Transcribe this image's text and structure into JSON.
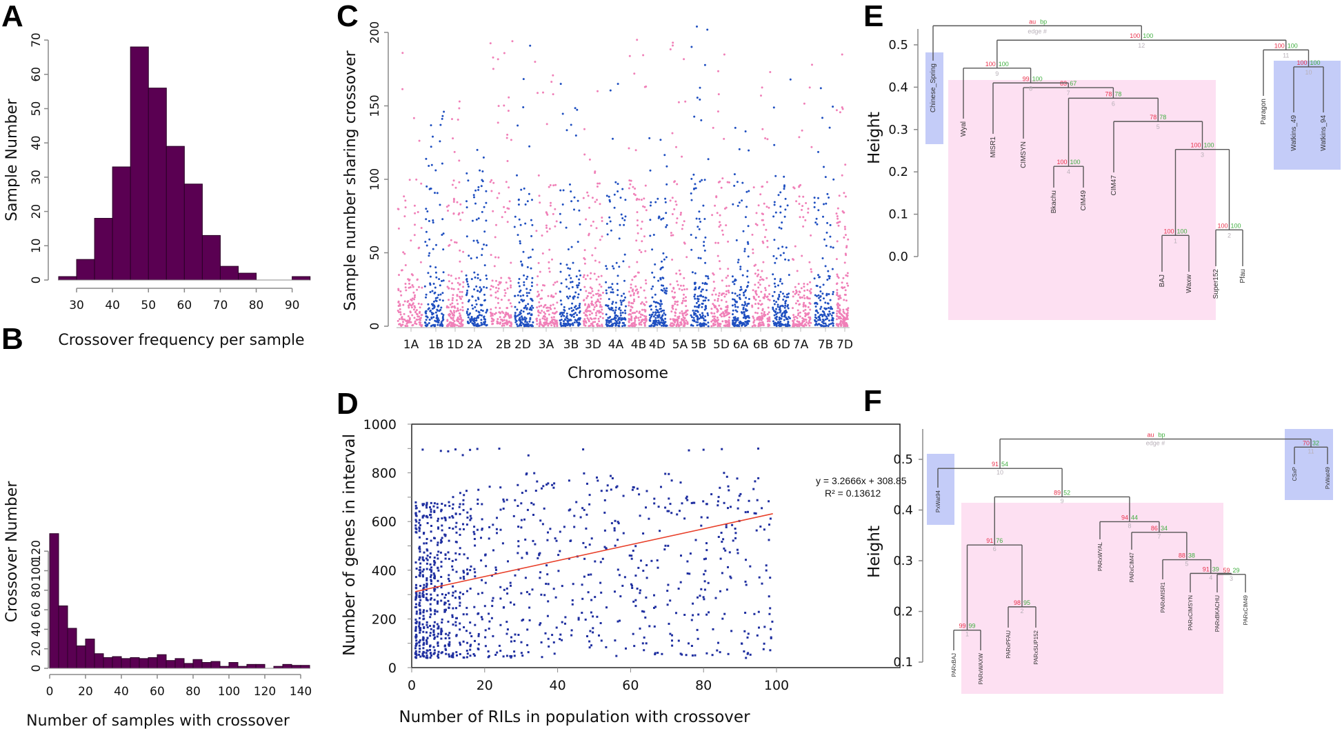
{
  "figure": {
    "panels": [
      "A",
      "B",
      "C",
      "D",
      "E",
      "F"
    ]
  },
  "chart_data": [
    {
      "id": "A",
      "type": "bar",
      "subtype": "histogram",
      "title": "",
      "xlabel": "Crossover frequency per sample",
      "ylabel": "Sample Number",
      "bin_width": 5,
      "bin_starts": [
        25,
        30,
        35,
        40,
        45,
        50,
        55,
        60,
        65,
        70,
        75,
        80,
        85,
        90
      ],
      "values": [
        1,
        6,
        18,
        33,
        68,
        56,
        39,
        28,
        13,
        4,
        2,
        0,
        0,
        1
      ],
      "xticks": [
        30,
        40,
        50,
        60,
        70,
        80,
        90
      ],
      "yticks": [
        0,
        10,
        20,
        30,
        40,
        50,
        60,
        70
      ],
      "xlim": [
        25,
        95
      ],
      "ylim": [
        0,
        70
      ],
      "bar_color": "#5a0052"
    },
    {
      "id": "B",
      "type": "bar",
      "subtype": "histogram",
      "title": "",
      "xlabel": "Number of samples with crossover",
      "ylabel": "Crossover Number",
      "bin_width": 5,
      "bin_starts": [
        0,
        5,
        10,
        15,
        20,
        25,
        30,
        35,
        40,
        45,
        50,
        55,
        60,
        65,
        70,
        75,
        80,
        85,
        90,
        95,
        100,
        105,
        110,
        115,
        120,
        125,
        130,
        135,
        140
      ],
      "values": [
        138,
        64,
        41,
        23,
        30,
        15,
        11,
        12,
        10,
        11,
        10,
        11,
        14,
        8,
        10,
        5,
        9,
        6,
        7,
        2,
        6,
        2,
        4,
        4,
        0,
        2,
        4,
        3,
        3
      ],
      "xticks": [
        0,
        20,
        40,
        60,
        80,
        100,
        120,
        140
      ],
      "yticks": [
        0,
        20,
        40,
        60,
        80,
        100,
        120
      ],
      "xlim": [
        0,
        145
      ],
      "ylim": [
        0,
        138
      ],
      "bar_color": "#5a0052"
    },
    {
      "id": "C",
      "type": "scatter",
      "subtype": "manhattan",
      "title": "",
      "xlabel": "Chromosome",
      "ylabel": "Sample number sharing crossover",
      "yticks": [
        0,
        50,
        100,
        150,
        200
      ],
      "ylim": [
        0,
        200
      ],
      "categories": [
        "1A",
        "1B",
        "1D",
        "2A",
        "2B",
        "2D",
        "3A",
        "3B",
        "3D",
        "4A",
        "4B",
        "4D",
        "5A",
        "5B",
        "5D",
        "6A",
        "6B",
        "6D",
        "7A",
        "7B",
        "7D"
      ],
      "chromosome_colors": [
        "#f080b8",
        "#1f4fc0",
        "#f080b8",
        "#1f4fc0",
        "#f080b8",
        "#1f4fc0",
        "#f080b8",
        "#1f4fc0",
        "#f080b8",
        "#1f4fc0",
        "#f080b8",
        "#1f4fc0",
        "#f080b8",
        "#1f4fc0",
        "#f080b8",
        "#1f4fc0",
        "#f080b8",
        "#1f4fc0",
        "#f080b8",
        "#1f4fc0",
        "#f080b8"
      ],
      "max_per_chromosome": [
        186,
        146,
        153,
        120,
        194,
        191,
        180,
        165,
        160,
        165,
        195,
        128,
        193,
        204,
        185,
        135,
        173,
        168,
        178,
        162,
        185
      ],
      "typical_range": [
        0,
        40
      ]
    },
    {
      "id": "D",
      "type": "scatter",
      "title": "",
      "xlabel": "Number of RILs in population with crossover",
      "ylabel": "Number of genes in interval",
      "xticks": [
        0,
        20,
        40,
        60,
        80,
        100
      ],
      "yticks": [
        0,
        200,
        400,
        600,
        800,
        1000
      ],
      "xlim": [
        0,
        115
      ],
      "ylim": [
        0,
        1000
      ],
      "point_color": "#1f2fa0",
      "trendline": {
        "equation": "y = 3.2666x + 308.85",
        "r_squared": "R² = 0.13612",
        "slope": 3.2666,
        "intercept": 308.85,
        "x_range": [
          1,
          99
        ],
        "color": "#e8402a"
      },
      "dense_region": {
        "x": [
          1,
          30
        ],
        "y": [
          40,
          750
        ]
      },
      "sparse_region": {
        "x": [
          30,
          99
        ],
        "y": [
          40,
          900
        ]
      }
    },
    {
      "id": "E",
      "type": "dendrogram",
      "ylabel": "Height",
      "yticks": [
        0.0,
        0.1,
        0.2,
        0.3,
        0.4,
        0.5
      ],
      "ylim": [
        0.0,
        0.5
      ],
      "legend": {
        "au": "au",
        "bp": "bp",
        "edge": "edge #"
      },
      "leaves": [
        "Chinese_Spring",
        "Wyal",
        "MISR1",
        "CIMSYN",
        "Bkachu",
        "CIM49",
        "CIM47",
        "BAJ",
        "Waxw",
        "Super152",
        "Pfau",
        "Paragon",
        "Watkins_49",
        "Watkins_94"
      ],
      "nodes": [
        {
          "edge": 1,
          "au": 100,
          "bp": 100,
          "height": 0.05,
          "children": [
            "BAJ",
            "Waxw"
          ]
        },
        {
          "edge": 2,
          "au": 100,
          "bp": 100,
          "height": 0.063,
          "children": [
            "Super152",
            "Pfau"
          ]
        },
        {
          "edge": 3,
          "au": 100,
          "bp": 100,
          "height": 0.253,
          "children": [
            "edge1",
            "edge2"
          ]
        },
        {
          "edge": 4,
          "au": 100,
          "bp": 100,
          "height": 0.213,
          "children": [
            "Bkachu",
            "CIM49"
          ]
        },
        {
          "edge": 5,
          "au": 78,
          "bp": 78,
          "height": 0.319,
          "children": [
            "CIM47",
            "edge3"
          ]
        },
        {
          "edge": 6,
          "au": 78,
          "bp": 78,
          "height": 0.374,
          "children": [
            "edge4",
            "edge5"
          ]
        },
        {
          "edge": 7,
          "au": 83,
          "bp": 67,
          "height": 0.399,
          "children": [
            "CIMSYN",
            "edge6"
          ]
        },
        {
          "edge": 8,
          "au": 99,
          "bp": 100,
          "height": 0.41,
          "children": [
            "MISR1",
            "edge7"
          ]
        },
        {
          "edge": 9,
          "au": 100,
          "bp": 100,
          "height": 0.445,
          "children": [
            "Wyal",
            "edge8"
          ]
        },
        {
          "edge": 10,
          "au": 100,
          "bp": 100,
          "height": 0.448,
          "children": [
            "Watkins_49",
            "Watkins_94"
          ]
        },
        {
          "edge": 11,
          "au": 100,
          "bp": 100,
          "height": 0.488,
          "children": [
            "Paragon",
            "edge10"
          ]
        },
        {
          "edge": 12,
          "au": 100,
          "bp": 100,
          "height": 0.511,
          "children": [
            "edge9",
            "edge11"
          ]
        },
        {
          "edge": 13,
          "au": null,
          "bp": null,
          "height": 0.545,
          "children": [
            "Chinese_Spring",
            "edge12"
          ]
        }
      ],
      "highlight_groups": [
        {
          "color": "#c4ccf8",
          "members": [
            "Chinese_Spring"
          ]
        },
        {
          "color": "#fde0f2",
          "members": [
            "Wyal",
            "MISR1",
            "CIMSYN",
            "Bkachu",
            "CIM49",
            "CIM47",
            "BAJ",
            "Waxw",
            "Super152",
            "Pfau"
          ]
        },
        {
          "color": "#c4ccf8",
          "members": [
            "Watkins_49",
            "Watkins_94"
          ]
        }
      ]
    },
    {
      "id": "F",
      "type": "dendrogram",
      "ylabel": "Height",
      "yticks": [
        0.1,
        0.2,
        0.3,
        0.4,
        0.5
      ],
      "ylim": [
        0.1,
        0.55
      ],
      "legend": {
        "au": "au",
        "bp": "bp",
        "edge": "edge #"
      },
      "leaves": [
        "PxWat94",
        "PARxBAJ",
        "PARxWAXW",
        "PARxPFAU",
        "PARxSUP152",
        "PARxWYAL",
        "PARxCIM47",
        "PARxMISR1",
        "PARxCIMSYN",
        "PARxBKACHU",
        "PARxCIM49",
        "CSxP",
        "PxWat49"
      ],
      "nodes": [
        {
          "edge": 1,
          "au": 99,
          "bp": 99,
          "height": 0.163,
          "children": [
            "PARxBAJ",
            "PARxWAXW"
          ]
        },
        {
          "edge": 2,
          "au": 98,
          "bp": 95,
          "height": 0.209,
          "children": [
            "PARxPFAU",
            "PARxSUP152"
          ]
        },
        {
          "edge": 3,
          "au": 59,
          "bp": 29,
          "height": 0.273,
          "children": [
            "PARxBKACHU",
            "PARxCIM49"
          ]
        },
        {
          "edge": 4,
          "au": 91,
          "bp": 39,
          "height": 0.275,
          "children": [
            "PARxCIMSYN",
            "edge3"
          ]
        },
        {
          "edge": 5,
          "au": 88,
          "bp": 38,
          "height": 0.302,
          "children": [
            "PARxMISR1",
            "edge4"
          ]
        },
        {
          "edge": 6,
          "au": 91,
          "bp": 76,
          "height": 0.331,
          "children": [
            "edge1",
            "edge2"
          ]
        },
        {
          "edge": 7,
          "au": 86,
          "bp": 34,
          "height": 0.356,
          "children": [
            "PARxCIM47",
            "edge5"
          ]
        },
        {
          "edge": 8,
          "au": 94,
          "bp": 44,
          "height": 0.377,
          "children": [
            "PARxWYAL",
            "edge7"
          ]
        },
        {
          "edge": 9,
          "au": 89,
          "bp": 52,
          "height": 0.426,
          "children": [
            "edge6",
            "edge8"
          ]
        },
        {
          "edge": 10,
          "au": 91,
          "bp": 54,
          "height": 0.482,
          "children": [
            "PxWat94",
            "edge9"
          ]
        },
        {
          "edge": 11,
          "au": 70,
          "bp": 32,
          "height": 0.524,
          "children": [
            "CSxP",
            "PxWat49"
          ]
        },
        {
          "edge": 12,
          "au": null,
          "bp": null,
          "height": 0.54,
          "children": [
            "edge10",
            "edge11"
          ]
        }
      ],
      "highlight_groups": [
        {
          "color": "#c4ccf8",
          "members": [
            "PxWat94"
          ]
        },
        {
          "color": "#fde0f2",
          "members": [
            "PARxBAJ",
            "PARxWAXW",
            "PARxPFAU",
            "PARxSUP152",
            "PARxWYAL",
            "PARxCIM47",
            "PARxMISR1",
            "PARxCIMSYN",
            "PARxBKACHU",
            "PARxCIM49"
          ]
        },
        {
          "color": "#c4ccf8",
          "members": [
            "CSxP",
            "PxWat49"
          ]
        }
      ]
    }
  ]
}
